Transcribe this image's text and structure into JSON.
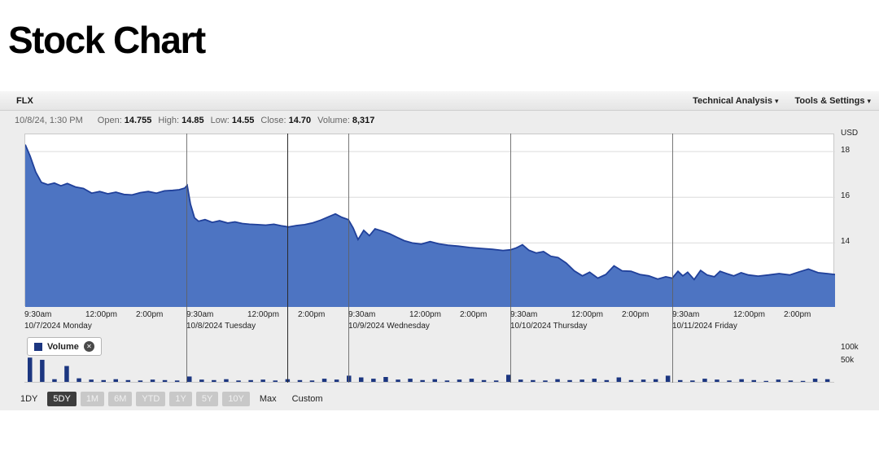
{
  "page": {
    "title": "Stock Chart"
  },
  "toolbar": {
    "symbol": "FLX",
    "menus": [
      {
        "label": "Technical Analysis"
      },
      {
        "label": "Tools & Settings"
      }
    ]
  },
  "quote": {
    "datetime": "10/8/24, 1:30 PM",
    "fields": [
      {
        "label": "Open:",
        "value": "14.755"
      },
      {
        "label": "High:",
        "value": "14.85"
      },
      {
        "label": "Low:",
        "value": "14.55"
      },
      {
        "label": "Close:",
        "value": "14.70"
      },
      {
        "label": "Volume:",
        "value": "8,317"
      }
    ]
  },
  "legend": {
    "label": "Volume"
  },
  "icons": {
    "close": "✕",
    "caret": "▾"
  },
  "range_buttons": [
    {
      "label": "1DY",
      "state": "normal"
    },
    {
      "label": "5DY",
      "state": "selected"
    },
    {
      "label": "1M",
      "state": "faded"
    },
    {
      "label": "6M",
      "state": "faded"
    },
    {
      "label": "YTD",
      "state": "faded"
    },
    {
      "label": "1Y",
      "state": "faded"
    },
    {
      "label": "5Y",
      "state": "faded"
    },
    {
      "label": "10Y",
      "state": "faded"
    },
    {
      "label": "Max",
      "state": "normal"
    },
    {
      "label": "Custom",
      "state": "normal"
    }
  ],
  "colors": {
    "area_fill": "#4d74c2",
    "area_line": "#20409a",
    "volume_bar": "#1c3680",
    "separator": "#606060",
    "crosshair": "#2b2b2b",
    "grid": "#dcdcdc"
  },
  "chart_data": {
    "type": "area",
    "title": "FLX 5-day intraday price",
    "unit": "USD",
    "ylim": [
      11.2,
      18.75
    ],
    "y_ticks": [
      18,
      16,
      14
    ],
    "x_tick_labels": [
      "9:30am",
      "12:00pm",
      "2:00pm"
    ],
    "days": [
      "10/7/2024 Monday",
      "10/8/2024 Tuesday",
      "10/9/2024 Wednesday",
      "10/10/2024 Thursday",
      "10/11/2024 Friday"
    ],
    "day_boundaries": [
      0.2,
      0.4,
      0.6,
      0.8
    ],
    "crosshair_fraction": 0.325,
    "price_points": [
      [
        0.0,
        18.3
      ],
      [
        0.006,
        17.8
      ],
      [
        0.013,
        17.1
      ],
      [
        0.02,
        16.65
      ],
      [
        0.028,
        16.55
      ],
      [
        0.036,
        16.62
      ],
      [
        0.044,
        16.5
      ],
      [
        0.052,
        16.6
      ],
      [
        0.062,
        16.45
      ],
      [
        0.072,
        16.38
      ],
      [
        0.082,
        16.18
      ],
      [
        0.092,
        16.25
      ],
      [
        0.102,
        16.15
      ],
      [
        0.112,
        16.22
      ],
      [
        0.122,
        16.12
      ],
      [
        0.132,
        16.1
      ],
      [
        0.142,
        16.2
      ],
      [
        0.152,
        16.25
      ],
      [
        0.162,
        16.18
      ],
      [
        0.172,
        16.28
      ],
      [
        0.182,
        16.3
      ],
      [
        0.19,
        16.33
      ],
      [
        0.197,
        16.4
      ],
      [
        0.2,
        16.52
      ],
      [
        0.204,
        15.7
      ],
      [
        0.209,
        15.1
      ],
      [
        0.214,
        14.95
      ],
      [
        0.222,
        15.02
      ],
      [
        0.231,
        14.9
      ],
      [
        0.24,
        14.97
      ],
      [
        0.25,
        14.87
      ],
      [
        0.259,
        14.92
      ],
      [
        0.268,
        14.85
      ],
      [
        0.277,
        14.82
      ],
      [
        0.287,
        14.8
      ],
      [
        0.297,
        14.78
      ],
      [
        0.307,
        14.82
      ],
      [
        0.316,
        14.75
      ],
      [
        0.325,
        14.7
      ],
      [
        0.335,
        14.76
      ],
      [
        0.345,
        14.8
      ],
      [
        0.355,
        14.88
      ],
      [
        0.365,
        15.0
      ],
      [
        0.375,
        15.15
      ],
      [
        0.383,
        15.27
      ],
      [
        0.391,
        15.12
      ],
      [
        0.399,
        15.02
      ],
      [
        0.405,
        14.65
      ],
      [
        0.411,
        14.15
      ],
      [
        0.418,
        14.55
      ],
      [
        0.425,
        14.32
      ],
      [
        0.432,
        14.62
      ],
      [
        0.441,
        14.52
      ],
      [
        0.45,
        14.4
      ],
      [
        0.459,
        14.25
      ],
      [
        0.468,
        14.1
      ],
      [
        0.478,
        14.0
      ],
      [
        0.489,
        13.95
      ],
      [
        0.5,
        14.06
      ],
      [
        0.511,
        13.96
      ],
      [
        0.522,
        13.9
      ],
      [
        0.535,
        13.86
      ],
      [
        0.549,
        13.8
      ],
      [
        0.563,
        13.76
      ],
      [
        0.577,
        13.72
      ],
      [
        0.59,
        13.67
      ],
      [
        0.599,
        13.7
      ],
      [
        0.606,
        13.78
      ],
      [
        0.614,
        13.92
      ],
      [
        0.622,
        13.68
      ],
      [
        0.631,
        13.56
      ],
      [
        0.64,
        13.62
      ],
      [
        0.649,
        13.42
      ],
      [
        0.658,
        13.36
      ],
      [
        0.668,
        13.12
      ],
      [
        0.678,
        12.78
      ],
      [
        0.688,
        12.56
      ],
      [
        0.697,
        12.72
      ],
      [
        0.707,
        12.46
      ],
      [
        0.717,
        12.62
      ],
      [
        0.727,
        13.0
      ],
      [
        0.737,
        12.78
      ],
      [
        0.748,
        12.76
      ],
      [
        0.759,
        12.62
      ],
      [
        0.77,
        12.56
      ],
      [
        0.781,
        12.42
      ],
      [
        0.791,
        12.52
      ],
      [
        0.799,
        12.46
      ],
      [
        0.806,
        12.76
      ],
      [
        0.812,
        12.56
      ],
      [
        0.818,
        12.72
      ],
      [
        0.826,
        12.4
      ],
      [
        0.834,
        12.8
      ],
      [
        0.842,
        12.6
      ],
      [
        0.851,
        12.52
      ],
      [
        0.858,
        12.76
      ],
      [
        0.866,
        12.66
      ],
      [
        0.875,
        12.56
      ],
      [
        0.884,
        12.7
      ],
      [
        0.893,
        12.6
      ],
      [
        0.905,
        12.55
      ],
      [
        0.918,
        12.6
      ],
      [
        0.931,
        12.66
      ],
      [
        0.944,
        12.6
      ],
      [
        0.956,
        12.74
      ],
      [
        0.967,
        12.86
      ],
      [
        0.979,
        12.7
      ],
      [
        0.99,
        12.66
      ],
      [
        1.0,
        12.62
      ]
    ],
    "volume": {
      "y_tick_labels": [
        "100k",
        "50k"
      ],
      "values_k": [
        57,
        52,
        8,
        38,
        10,
        7,
        6,
        8,
        6,
        5,
        7,
        6,
        5,
        14,
        7,
        6,
        8,
        5,
        6,
        7,
        5,
        8,
        6,
        5,
        9,
        7,
        16,
        12,
        9,
        13,
        7,
        9,
        6,
        8,
        5,
        7,
        9,
        6,
        5,
        18,
        7,
        6,
        5,
        8,
        6,
        7,
        9,
        6,
        12,
        6,
        7,
        8,
        16,
        6,
        5,
        9,
        7,
        5,
        8,
        6,
        4,
        7,
        5,
        4,
        9,
        8
      ]
    }
  }
}
